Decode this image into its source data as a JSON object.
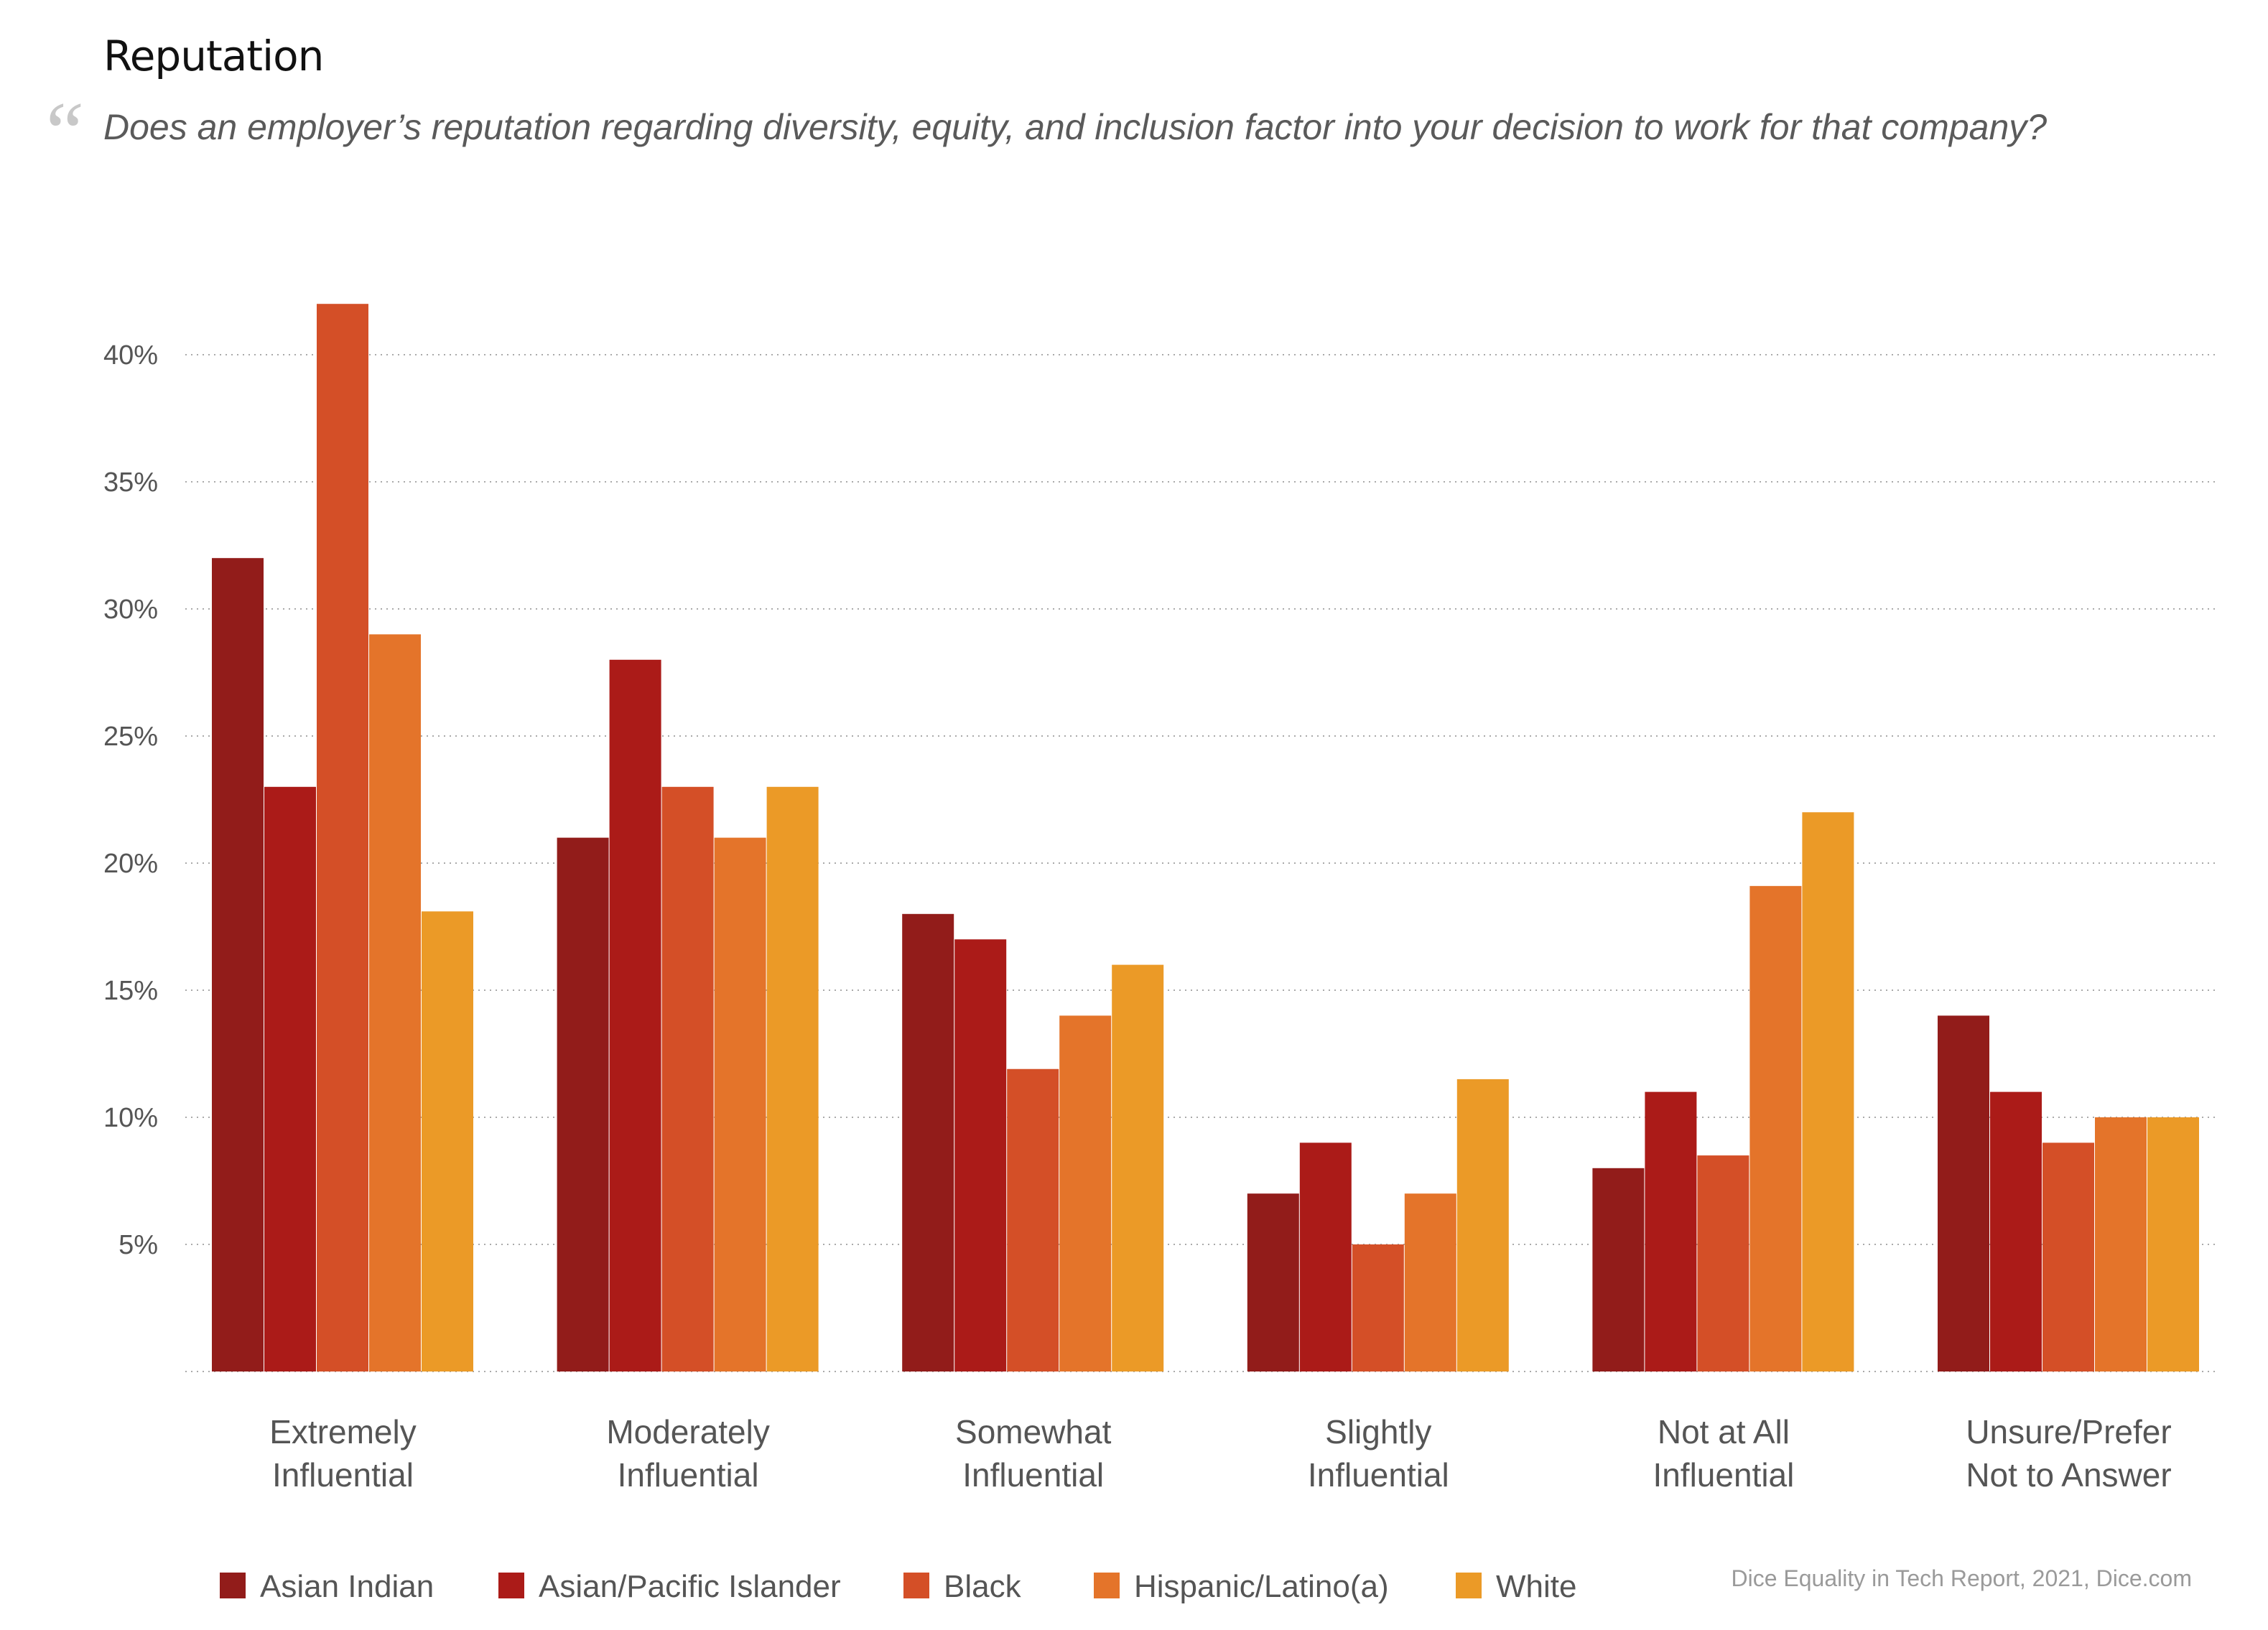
{
  "header": {
    "title": "Reputation",
    "quote_mark": "“",
    "question": "Does an employer’s reputation regarding diversity, equity, and inclusion factor into your decision to work for that company?"
  },
  "source": "Dice Equality in Tech Report, 2021, Dice.com",
  "chart_data": {
    "type": "bar",
    "title": "Reputation",
    "categories": [
      [
        "Extremely",
        "Influential"
      ],
      [
        "Moderately",
        "Influential"
      ],
      [
        "Somewhat",
        "Influential"
      ],
      [
        "Slightly",
        "Influential"
      ],
      [
        "Not at All",
        "Influential"
      ],
      [
        "Unsure/Prefer",
        "Not to Answer"
      ]
    ],
    "series": [
      {
        "name": "Asian Indian",
        "color": "#921c1a",
        "values": [
          32,
          21,
          18,
          7,
          8,
          14
        ]
      },
      {
        "name": "Asian/Pacific Islander",
        "color": "#ab1b18",
        "values": [
          23,
          28,
          17,
          9,
          11,
          11
        ]
      },
      {
        "name": "Black",
        "color": "#d44f27",
        "values": [
          42,
          23,
          11.9,
          5,
          8.5,
          9
        ]
      },
      {
        "name": "Hispanic/Latino(a)",
        "color": "#e4742a",
        "values": [
          29,
          21,
          14,
          7,
          19.1,
          10
        ]
      },
      {
        "name": "White",
        "color": "#eb9a27",
        "values": [
          18.1,
          23,
          16,
          11.5,
          22,
          10
        ]
      }
    ],
    "yticks": [
      "5%",
      "10%",
      "15%",
      "20%",
      "25%",
      "30%",
      "35%",
      "40%"
    ],
    "ytick_values": [
      5,
      10,
      15,
      20,
      25,
      30,
      35,
      40
    ],
    "ylim": [
      0,
      42
    ],
    "grid": true,
    "legend_position": "bottom"
  }
}
